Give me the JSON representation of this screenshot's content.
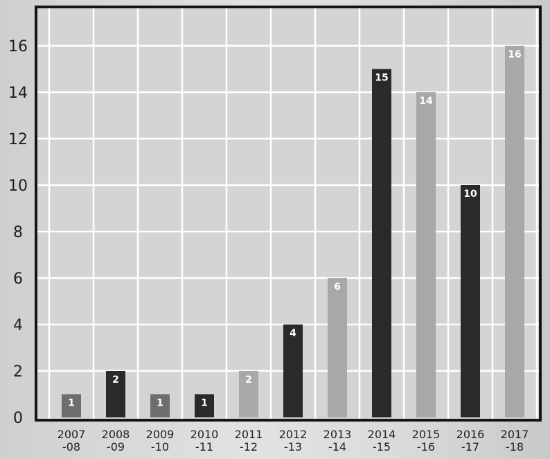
{
  "chart_data": {
    "type": "bar",
    "title": "",
    "xlabel": "",
    "ylabel": "",
    "categories": [
      [
        "2007",
        "-08"
      ],
      [
        "2008",
        "-09"
      ],
      [
        "2009",
        "-10"
      ],
      [
        "2010",
        "-11"
      ],
      [
        "2011",
        "-12"
      ],
      [
        "2012",
        "-13"
      ],
      [
        "2013",
        "-14"
      ],
      [
        "2014",
        "-15"
      ],
      [
        "2015",
        "-16"
      ],
      [
        "2016",
        "-17"
      ],
      [
        "2017",
        "-18"
      ]
    ],
    "values": [
      1,
      2,
      1,
      1,
      2,
      4,
      6,
      15,
      14,
      10,
      16
    ],
    "bar_shades": [
      "medium",
      "dark",
      "medium",
      "dark",
      "light",
      "dark",
      "light",
      "dark",
      "light",
      "dark",
      "light"
    ],
    "colors": {
      "dark": "#2a2a2a",
      "medium": "#6e6e6e",
      "light": "#a8a8a8",
      "plot_background": "#d4d4d4",
      "grid": "#ffffff"
    },
    "yticks": [
      0,
      2,
      4,
      6,
      8,
      10,
      12,
      14,
      16
    ],
    "ylim": [
      0,
      17.5
    ],
    "grid": true,
    "legend": "none"
  }
}
